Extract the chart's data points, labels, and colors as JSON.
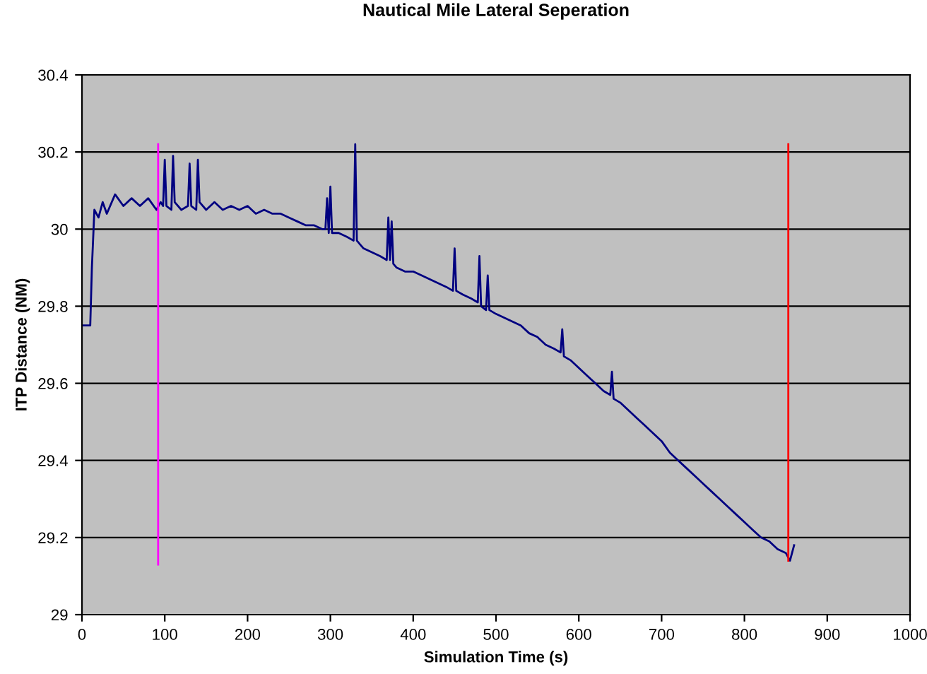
{
  "chart_data": {
    "type": "line",
    "title": "Nautical Mile Lateral Seperation",
    "xlabel": "Simulation Time (s)",
    "ylabel": "ITP Distance (NM)",
    "xlim": [
      0,
      1000
    ],
    "xticks": [
      0,
      100,
      200,
      300,
      400,
      500,
      600,
      700,
      800,
      900,
      1000
    ],
    "ylim": [
      29,
      30.4
    ],
    "yticks": [
      29,
      29.2,
      29.4,
      29.6,
      29.8,
      30,
      30.2,
      30.4
    ],
    "grid": "y",
    "marker": "none",
    "line_style": "solid",
    "series": [
      {
        "color": "#000080",
        "x": [
          0,
          10,
          12,
          15,
          20,
          25,
          30,
          40,
          50,
          60,
          70,
          80,
          90,
          95,
          98,
          100,
          102,
          108,
          110,
          112,
          120,
          128,
          130,
          132,
          138,
          140,
          142,
          150,
          160,
          170,
          180,
          190,
          200,
          210,
          220,
          230,
          240,
          250,
          260,
          270,
          280,
          290,
          294,
          296,
          298,
          300,
          302,
          310,
          320,
          328,
          330,
          332,
          340,
          350,
          360,
          368,
          370,
          372,
          374,
          376,
          380,
          390,
          400,
          410,
          420,
          430,
          440,
          448,
          450,
          452,
          460,
          470,
          478,
          480,
          482,
          488,
          490,
          492,
          500,
          510,
          520,
          530,
          540,
          550,
          560,
          570,
          578,
          580,
          582,
          590,
          600,
          610,
          620,
          630,
          638,
          640,
          642,
          650,
          660,
          670,
          680,
          690,
          700,
          710,
          720,
          730,
          740,
          750,
          760,
          770,
          780,
          790,
          800,
          810,
          820,
          830,
          840,
          850,
          855,
          860
        ],
        "values": [
          29.75,
          29.75,
          29.9,
          30.05,
          30.03,
          30.07,
          30.04,
          30.09,
          30.06,
          30.08,
          30.06,
          30.08,
          30.05,
          30.07,
          30.06,
          30.18,
          30.06,
          30.05,
          30.19,
          30.07,
          30.05,
          30.06,
          30.17,
          30.06,
          30.05,
          30.18,
          30.07,
          30.05,
          30.07,
          30.05,
          30.06,
          30.05,
          30.06,
          30.04,
          30.05,
          30.04,
          30.04,
          30.03,
          30.02,
          30.01,
          30.01,
          30.0,
          30.0,
          30.08,
          29.99,
          30.11,
          29.99,
          29.99,
          29.98,
          29.97,
          30.22,
          29.97,
          29.95,
          29.94,
          29.93,
          29.92,
          30.03,
          29.92,
          30.02,
          29.91,
          29.9,
          29.89,
          29.89,
          29.88,
          29.87,
          29.86,
          29.85,
          29.84,
          29.95,
          29.84,
          29.83,
          29.82,
          29.81,
          29.93,
          29.8,
          29.79,
          29.88,
          29.79,
          29.78,
          29.77,
          29.76,
          29.75,
          29.73,
          29.72,
          29.7,
          29.69,
          29.68,
          29.74,
          29.67,
          29.66,
          29.64,
          29.62,
          29.6,
          29.58,
          29.57,
          29.63,
          29.56,
          29.55,
          29.53,
          29.51,
          29.49,
          29.47,
          29.45,
          29.42,
          29.4,
          29.38,
          29.36,
          29.34,
          29.32,
          29.3,
          29.28,
          29.26,
          29.24,
          29.22,
          29.2,
          29.19,
          29.17,
          29.16,
          29.14,
          29.18
        ]
      },
      {
        "color": "#ff00ff",
        "x": [
          92,
          92
        ],
        "values": [
          29.13,
          30.22
        ]
      },
      {
        "color": "#ff0000",
        "x": [
          853,
          853
        ],
        "values": [
          29.14,
          30.22
        ]
      }
    ]
  }
}
